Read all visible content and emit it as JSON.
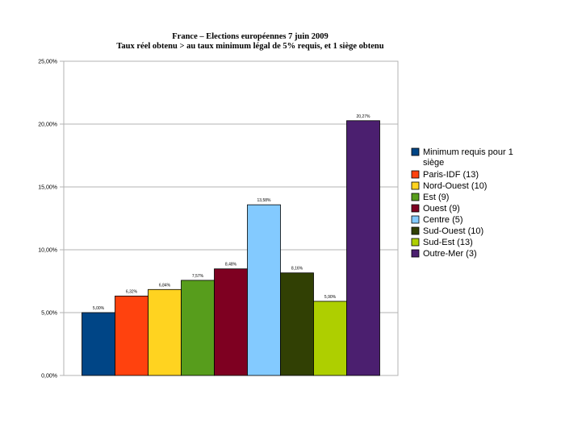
{
  "chart_data": {
    "type": "bar",
    "title": "France – Elections européennes 7 juin 2009",
    "subtitle": "Taux réel obtenu > au taux minimum légal de 5% requis, et 1 siège obtenu",
    "xlabel": "",
    "ylabel": "",
    "ylim": [
      0,
      25
    ],
    "yticks": [
      "0,00%",
      "5,00%",
      "10,00%",
      "15,00%",
      "20,00%",
      "25,00%"
    ],
    "grid": true,
    "legend_position": "right",
    "series": [
      {
        "name": "Minimum requis pour 1 siège",
        "value": 5.0,
        "label": "5,00%",
        "color": "#004586"
      },
      {
        "name": "Paris-IDF (13)",
        "value": 6.32,
        "label": "6,32%",
        "color": "#ff420e"
      },
      {
        "name": "Nord-Ouest (10)",
        "value": 6.84,
        "label": "6,84%",
        "color": "#ffd320"
      },
      {
        "name": "Est (9)",
        "value": 7.57,
        "label": "7,57%",
        "color": "#579d1c"
      },
      {
        "name": "Ouest (9)",
        "value": 8.48,
        "label": "8,48%",
        "color": "#7e0021"
      },
      {
        "name": "Centre (5)",
        "value": 13.58,
        "label": "13,58%",
        "color": "#83caff"
      },
      {
        "name": "Sud-Ouest (10)",
        "value": 8.16,
        "label": "8,16%",
        "color": "#314004"
      },
      {
        "name": "Sud-Est (13)",
        "value": 5.9,
        "label": "5,90%",
        "color": "#aecf00"
      },
      {
        "name": "Outre-Mer (3)",
        "value": 20.27,
        "label": "20,27%",
        "color": "#4b1f6f"
      }
    ]
  }
}
